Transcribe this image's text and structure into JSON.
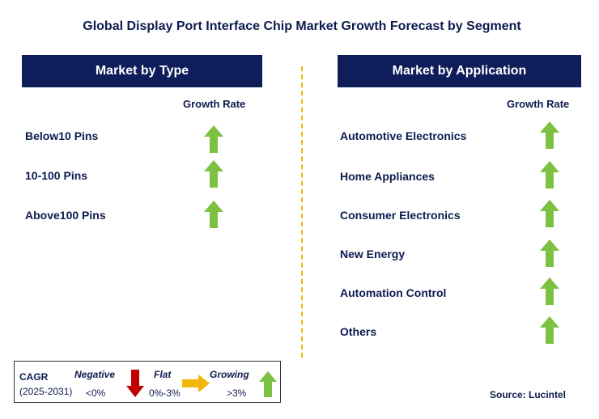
{
  "title": "Global Display Port Interface Chip Market Growth Forecast by Segment",
  "left_panel": {
    "header": "Market by Type",
    "growth_rate_label": "Growth Rate",
    "items": [
      {
        "label": "Below10 Pins",
        "trend": "growing"
      },
      {
        "label": "10-100 Pins",
        "trend": "growing"
      },
      {
        "label": "Above100 Pins",
        "trend": "growing"
      }
    ]
  },
  "right_panel": {
    "header": "Market by Application",
    "growth_rate_label": "Growth Rate",
    "items": [
      {
        "label": "Automotive Electronics",
        "trend": "growing"
      },
      {
        "label": "Home Appliances",
        "trend": "growing"
      },
      {
        "label": "Consumer Electronics",
        "trend": "growing"
      },
      {
        "label": "New Energy",
        "trend": "growing"
      },
      {
        "label": "Automation Control",
        "trend": "growing"
      },
      {
        "label": "Others",
        "trend": "growing"
      }
    ]
  },
  "legend": {
    "cagr_label": "CAGR",
    "period": "(2025-2031)",
    "negative_label": "Negative",
    "negative_range": "<0%",
    "flat_label": "Flat",
    "flat_range": "0%-3%",
    "growing_label": "Growing",
    "growing_range": ">3%"
  },
  "source": "Source: Lucintel",
  "colors": {
    "header_bg": "#0f1e5a",
    "text": "#0d1b4f",
    "growing_arrow": "#7dc142",
    "negative_arrow": "#c00000",
    "flat_arrow": "#f2b705",
    "divider": "#f2b705"
  }
}
